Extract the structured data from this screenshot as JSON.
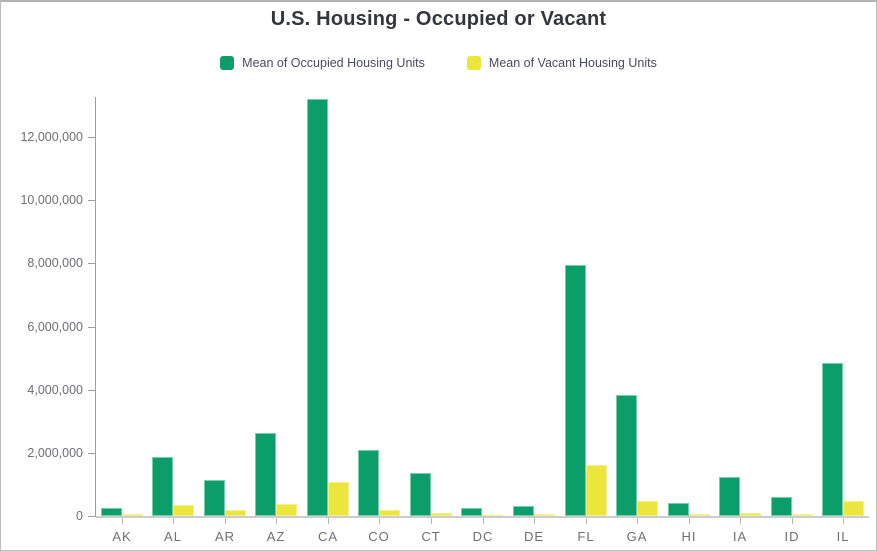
{
  "title": "U.S. Housing - Occupied or Vacant",
  "colors": {
    "occupied": "#0b9e6b",
    "vacant": "#ece63c",
    "axis_line": "#9e9e9e",
    "baseline": "#cccccc",
    "tick_label": "#6e6e78",
    "title_text": "#35353e",
    "legend_text": "#4b4b5e"
  },
  "legend": [
    {
      "label": "Mean of Occupied Housing Units",
      "color": "#0b9e6b",
      "swatch_icon": "square-swatch-icon"
    },
    {
      "label": "Mean of Vacant Housing Units",
      "color": "#ece63c",
      "swatch_icon": "square-swatch-icon"
    }
  ],
  "chart_data": {
    "type": "bar",
    "title": "U.S. Housing - Occupied or Vacant",
    "xlabel": "",
    "ylabel": "",
    "categories": [
      "AK",
      "AL",
      "AR",
      "AZ",
      "CA",
      "CO",
      "CT",
      "DC",
      "DE",
      "FL",
      "GA",
      "HI",
      "IA",
      "ID",
      "IL"
    ],
    "series": [
      {
        "name": "Mean of Occupied Housing Units",
        "color": "#0b9e6b",
        "values": [
          240000,
          1870000,
          1130000,
          2620000,
          13200000,
          2090000,
          1360000,
          250000,
          330000,
          7950000,
          3830000,
          420000,
          1240000,
          610000,
          4860000
        ]
      },
      {
        "name": "Mean of Vacant Housing Units",
        "color": "#ece63c",
        "values": [
          60000,
          350000,
          190000,
          380000,
          1080000,
          200000,
          100000,
          30000,
          60000,
          1600000,
          460000,
          60000,
          90000,
          60000,
          470000
        ]
      }
    ],
    "ylim": [
      0,
      13270000
    ],
    "yticks": [
      0,
      2000000,
      4000000,
      6000000,
      8000000,
      10000000,
      12000000
    ],
    "ytick_labels": [
      "0",
      "2,000,000",
      "4,000,000",
      "6,000,000",
      "8,000,000",
      "10,000,000",
      "12,000,000"
    ],
    "grid": false,
    "legend_position": "top"
  }
}
